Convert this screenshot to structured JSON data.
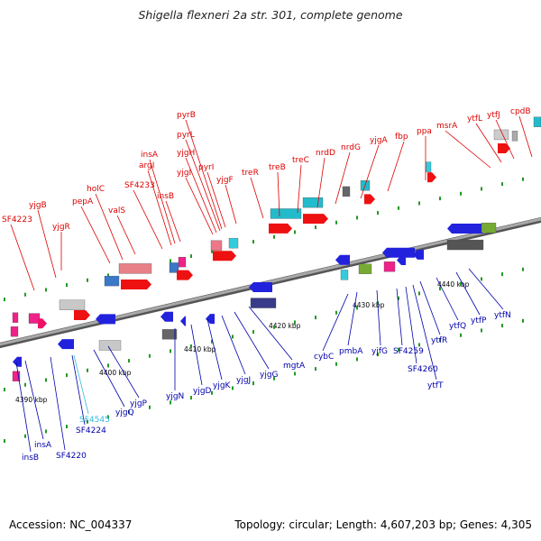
{
  "title": "Shigella flexneri 2a str. 301, complete genome",
  "footer": {
    "accession": "Accession: NC_004337",
    "topology": "Topology: circular; Length: 4,607,203 bp; Genes: 4,305"
  },
  "colors": {
    "forward_label": "#dd0000",
    "reverse_label": "#0000aa",
    "highlight_label": "#33bbdd",
    "backbone": "#888888",
    "tick_mark": "#229922"
  },
  "scale_ticks": [
    "4390 kbp",
    "4400 kbp",
    "4410 kbp",
    "4420 kbp",
    "4430 kbp",
    "4440 kbp"
  ],
  "forward_genes": [
    "SF4223",
    "yjgB",
    "yjgR",
    "pepA",
    "holC",
    "valS",
    "SF4233",
    "argI",
    "insA",
    "insB",
    "yjgI",
    "yjgH",
    "pyrL",
    "pyrB",
    "pyrI",
    "yjgF",
    "treR",
    "treB",
    "treC",
    "nrdD",
    "nrdG",
    "yjgA",
    "fbp",
    "ppa",
    "msrA",
    "ytfL",
    "ytfJ",
    "cpdB"
  ],
  "reverse_genes": [
    "insB",
    "insA",
    "SF4220",
    "SF4224",
    "SF4545",
    "yjgQ",
    "yjgP",
    "yjgN",
    "yjgD",
    "yjgK",
    "yjgJ",
    "yjgG",
    "mgtA",
    "cybC",
    "pmbA",
    "yjfG",
    "SF4259",
    "SF4260",
    "ytfT",
    "ytfR",
    "ytfQ",
    "ytfP",
    "ytfN"
  ]
}
